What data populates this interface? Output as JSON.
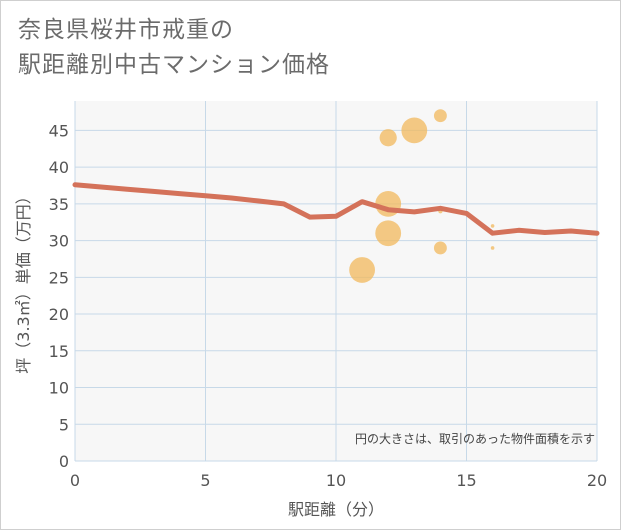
{
  "title": {
    "line1": "奈良県桜井市戒重の",
    "line2": "駅距離別中古マンション価格"
  },
  "colors": {
    "line": "#d4725a",
    "bubble": "#f2b85c",
    "grid": "#c7d9e8",
    "plot_bg": "#f7f7f7"
  },
  "chart_data": {
    "type": "scatter",
    "title": "奈良県桜井市戒重の駅距離別中古マンション価格",
    "xlabel": "駅距離（分）",
    "ylabel": "坪（3.3㎡）単価（万円）",
    "xlim": [
      0,
      20
    ],
    "ylim": [
      0,
      49
    ],
    "xticks": [
      0,
      5,
      10,
      15,
      20
    ],
    "yticks": [
      0,
      5,
      10,
      15,
      20,
      25,
      30,
      35,
      40,
      45
    ],
    "note": "円の大きさは、取引のあった物件面積を示す",
    "series": [
      {
        "name": "取引物件",
        "kind": "bubble",
        "points": [
          {
            "x": 11,
            "y": 26,
            "size": 3
          },
          {
            "x": 12,
            "y": 31,
            "size": 3
          },
          {
            "x": 12,
            "y": 35,
            "size": 3
          },
          {
            "x": 12,
            "y": 44,
            "size": 2
          },
          {
            "x": 13,
            "y": 45,
            "size": 3
          },
          {
            "x": 14,
            "y": 29,
            "size": 1.5
          },
          {
            "x": 14,
            "y": 34,
            "size": 0.5
          },
          {
            "x": 14,
            "y": 47,
            "size": 1.5
          },
          {
            "x": 16,
            "y": 29,
            "size": 0.3
          },
          {
            "x": 16,
            "y": 32,
            "size": 0.3
          }
        ]
      },
      {
        "name": "平均単価",
        "kind": "line",
        "x": [
          0,
          1,
          2,
          3,
          4,
          5,
          6,
          7,
          8,
          9,
          10,
          11,
          12,
          13,
          14,
          15,
          16,
          17,
          18,
          19,
          20
        ],
        "y": [
          37.6,
          37.3,
          37.0,
          36.7,
          36.4,
          36.1,
          35.8,
          35.4,
          35.0,
          33.2,
          33.3,
          35.3,
          34.2,
          33.9,
          34.4,
          33.7,
          31.0,
          31.4,
          31.1,
          31.3,
          31.0
        ]
      }
    ]
  }
}
